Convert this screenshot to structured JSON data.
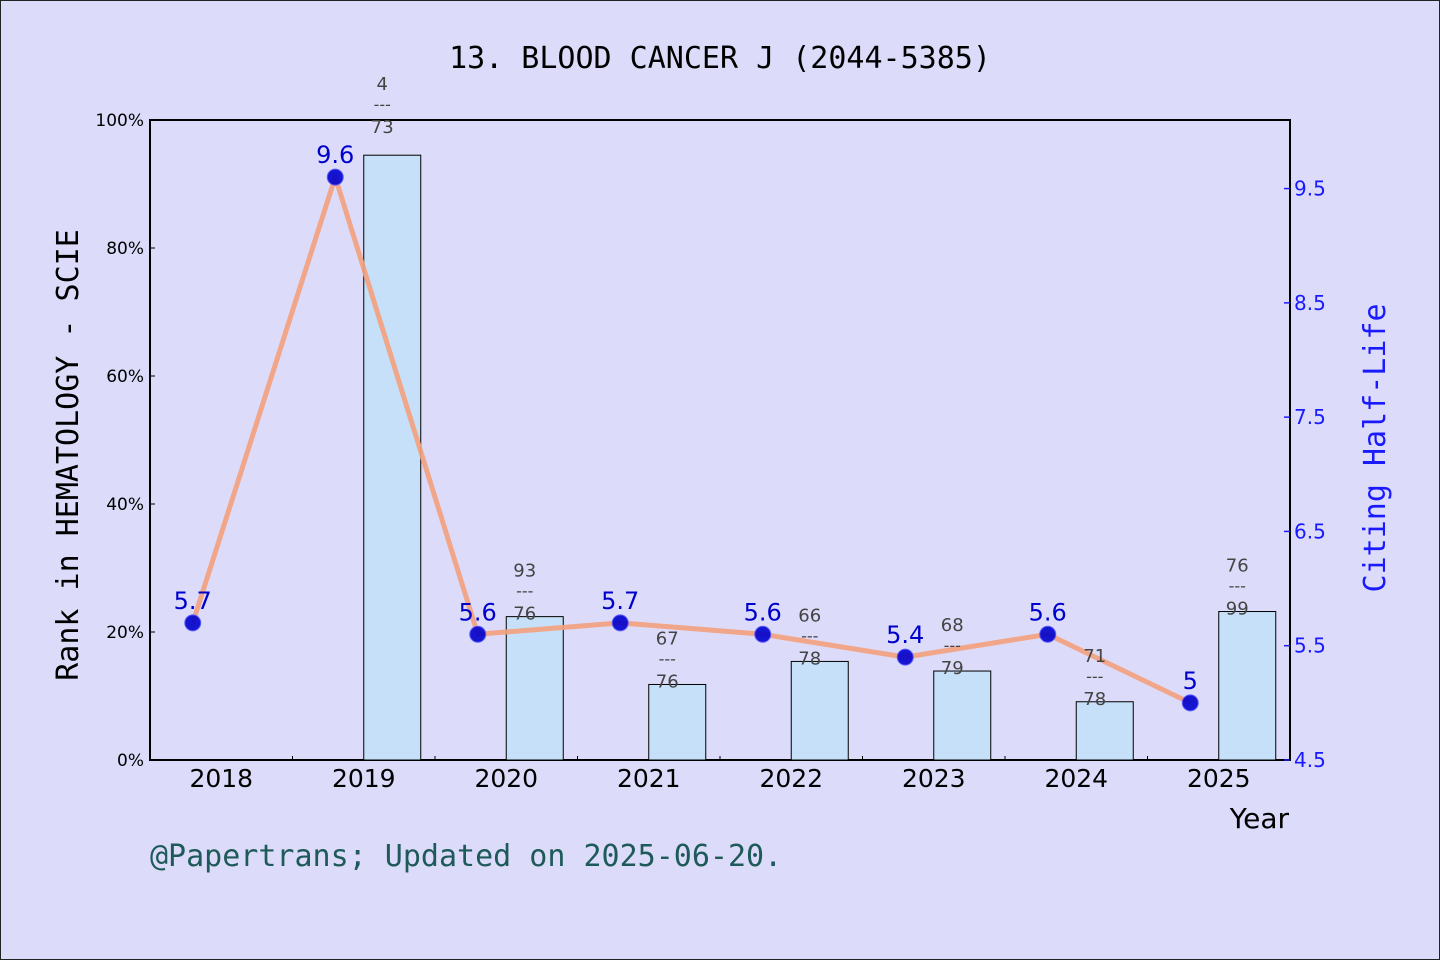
{
  "chart_data": {
    "type": "bar",
    "title": "13. BLOOD CANCER J (2044-5385)",
    "xlabel": "Year",
    "ylabel_left": "Rank in HEMATOLOGY - SCIE",
    "ylabel_right": "Citing Half-Life",
    "left_axis": {
      "ylim": [
        0,
        100
      ],
      "ticks": [
        "0%",
        "20%",
        "40%",
        "60%",
        "80%",
        "100%"
      ],
      "tick_values": [
        0,
        20,
        40,
        60,
        80,
        100
      ]
    },
    "right_axis": {
      "ylim": [
        4.5,
        10.1
      ],
      "ticks": [
        "4.5",
        "5.5",
        "6.5",
        "7.5",
        "8.5",
        "9.5"
      ],
      "tick_values": [
        4.5,
        5.5,
        6.5,
        7.5,
        8.5,
        9.5
      ]
    },
    "categories": [
      "2018",
      "2019",
      "2020",
      "2021",
      "2022",
      "2023",
      "2024",
      "2025"
    ],
    "series": [
      {
        "kind": "bar",
        "axis": "left",
        "values": [
          null,
          94.5,
          22.4,
          11.8,
          15.4,
          13.9,
          9.1,
          23.2
        ],
        "rank_labels": [
          null,
          {
            "num": "4",
            "den": "73"
          },
          {
            "num": "93",
            "den": "76"
          },
          {
            "num": "67",
            "den": "76"
          },
          {
            "num": "66",
            "den": "78"
          },
          {
            "num": "68",
            "den": "79"
          },
          {
            "num": "71",
            "den": "78"
          },
          {
            "num": "76",
            "den": "99"
          }
        ],
        "color": "#c5e0f8"
      },
      {
        "kind": "line",
        "axis": "right",
        "values": [
          5.7,
          9.6,
          5.6,
          5.7,
          5.6,
          5.4,
          5.6,
          5.0
        ],
        "labels": [
          "5.7",
          "9.6",
          "5.6",
          "5.7",
          "5.6",
          "5.4",
          "5.6",
          "5"
        ],
        "color": "#f4a07c",
        "marker_color": "#0000cd"
      }
    ],
    "grid": false
  },
  "footer": "@Papertrans; Updated on 2025-06-20."
}
